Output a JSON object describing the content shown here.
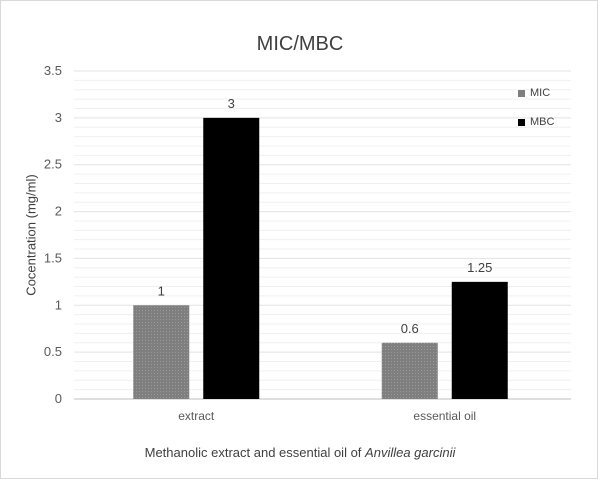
{
  "chart_data": {
    "type": "bar",
    "title": "MIC/MBC",
    "xlabel": "Methanolic extract and essential oil of",
    "xlabel_italic": "Anvillea garcinii",
    "ylabel": "Cocentration (mg/ml)",
    "categories": [
      "extract",
      "essential oil"
    ],
    "series": [
      {
        "name": "MIC",
        "values": [
          1,
          0.6
        ],
        "color": "#7f7f7f"
      },
      {
        "name": "MBC",
        "values": [
          3,
          1.25
        ],
        "color": "#000000"
      }
    ],
    "data_labels": [
      [
        "1",
        "0.6"
      ],
      [
        "3",
        "1.25"
      ]
    ],
    "ylim": [
      0,
      3.5
    ],
    "yticks": [
      "0",
      "0.5",
      "1",
      "1.5",
      "2",
      "2.5",
      "3",
      "3.5"
    ],
    "grid": true,
    "legend_position": "top-right"
  }
}
